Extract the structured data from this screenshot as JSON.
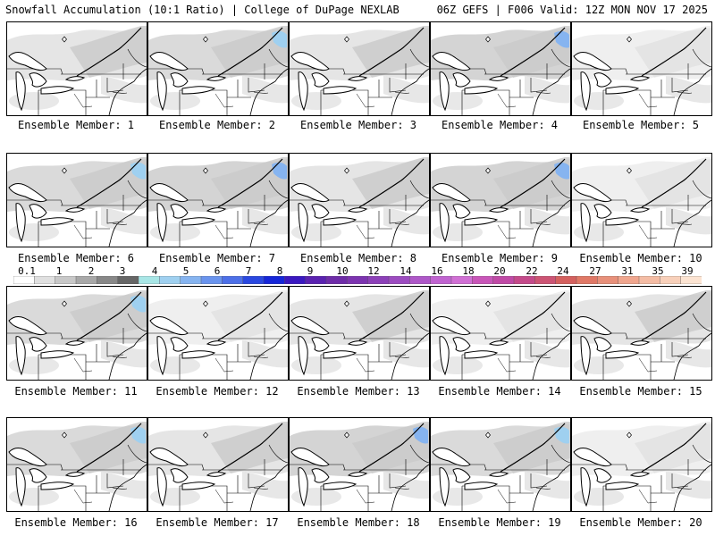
{
  "header": {
    "left": "Snowfall Accumulation (10:1 Ratio) | College of DuPage NEXLAB",
    "right": "06Z GEFS | F006 Valid: 12Z MON NOV 17 2025"
  },
  "members": [
    {
      "label": "Ensemble Member: 1",
      "snow_intensity": "light"
    },
    {
      "label": "Ensemble Member: 2",
      "snow_intensity": "moderate"
    },
    {
      "label": "Ensemble Member: 3",
      "snow_intensity": "light"
    },
    {
      "label": "Ensemble Member: 4",
      "snow_intensity": "heavy"
    },
    {
      "label": "Ensemble Member: 5",
      "snow_intensity": "none"
    },
    {
      "label": "Ensemble Member: 6",
      "snow_intensity": "moderate"
    },
    {
      "label": "Ensemble Member: 7",
      "snow_intensity": "heavy"
    },
    {
      "label": "Ensemble Member: 8",
      "snow_intensity": "light"
    },
    {
      "label": "Ensemble Member: 9",
      "snow_intensity": "heavy"
    },
    {
      "label": "Ensemble Member: 10",
      "snow_intensity": "none"
    },
    {
      "label": "Ensemble Member: 11",
      "snow_intensity": "moderate"
    },
    {
      "label": "Ensemble Member: 12",
      "snow_intensity": "none"
    },
    {
      "label": "Ensemble Member: 13",
      "snow_intensity": "light"
    },
    {
      "label": "Ensemble Member: 14",
      "snow_intensity": "none"
    },
    {
      "label": "Ensemble Member: 15",
      "snow_intensity": "light"
    },
    {
      "label": "Ensemble Member: 16",
      "snow_intensity": "moderate"
    },
    {
      "label": "Ensemble Member: 17",
      "snow_intensity": "light"
    },
    {
      "label": "Ensemble Member: 18",
      "snow_intensity": "heavy"
    },
    {
      "label": "Ensemble Member: 19",
      "snow_intensity": "moderate"
    },
    {
      "label": "Ensemble Member: 20",
      "snow_intensity": "none"
    }
  ],
  "colorbar": {
    "labels": [
      "0.1",
      "1",
      "2",
      "3",
      "4",
      "5",
      "6",
      "7",
      "8",
      "9",
      "10",
      "12",
      "14",
      "16",
      "18",
      "20",
      "22",
      "24",
      "27",
      "31",
      "35",
      "39"
    ],
    "colors": [
      "#ffffff",
      "#e0e0e0",
      "#c8c8c8",
      "#a8a8a8",
      "#888888",
      "#666666",
      "#a8e6e6",
      "#9fd0f0",
      "#86b4f0",
      "#6a94ee",
      "#4d70e8",
      "#2a48e0",
      "#1626d8",
      "#3a18c0",
      "#5a22b0",
      "#6e2ca8",
      "#7c34b0",
      "#8c40b8",
      "#9c4cc0",
      "#ae58c8",
      "#c064d0",
      "#d070d4",
      "#c856b8",
      "#c04aa6",
      "#c44a8a",
      "#cc5474",
      "#d4605e",
      "#e07866",
      "#e8907a",
      "#f0a68e",
      "#f4bca4",
      "#f8d0ba",
      "#fce4d2"
    ]
  }
}
